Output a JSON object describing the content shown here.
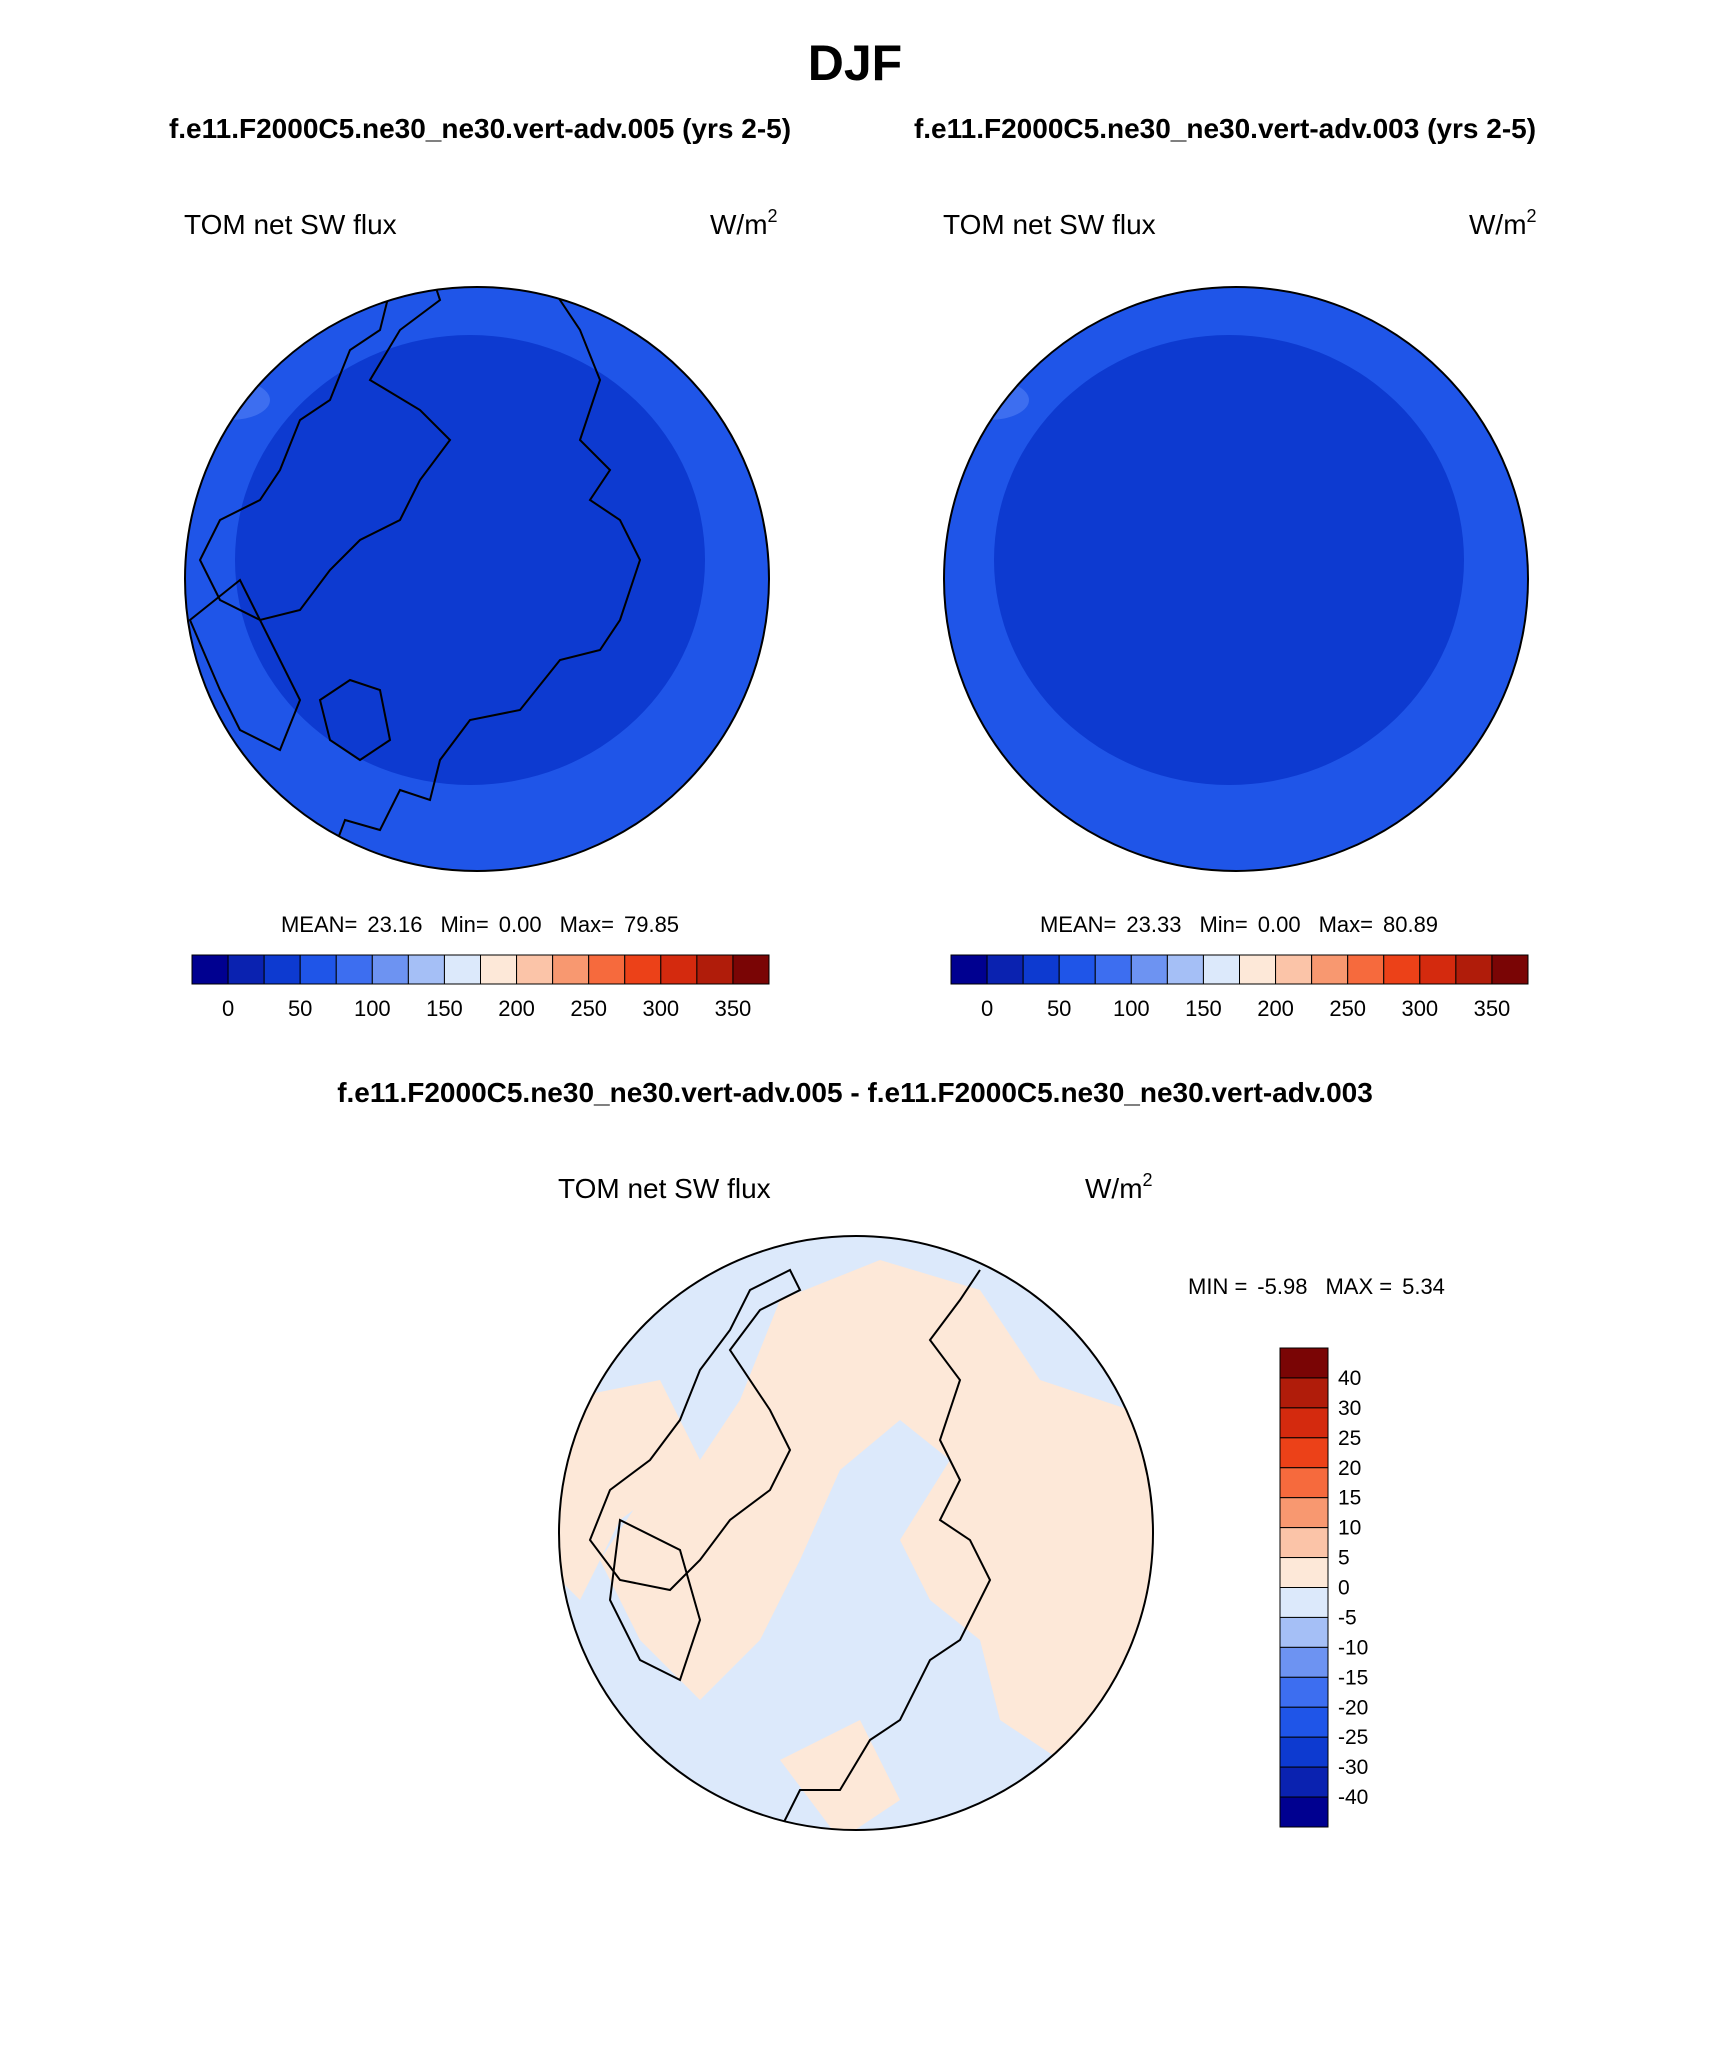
{
  "title": "DJF",
  "subtitle_left": "f.e11.F2000C5.ne30_ne30.vert-adv.005 (yrs 2-5)",
  "subtitle_right": "f.e11.F2000C5.ne30_ne30.vert-adv.003 (yrs 2-5)",
  "panels": [
    {
      "label": "TOM net SW flux",
      "units": "W/m",
      "units_sup": "2",
      "mean_label": "MEAN=",
      "mean": "23.16",
      "min_label": "Min=",
      "min": "0.00",
      "max_label": "Max=",
      "max": "79.85"
    },
    {
      "label": "TOM net SW flux",
      "units": "W/m",
      "units_sup": "2",
      "mean_label": "MEAN=",
      "mean": "23.33",
      "min_label": "Min=",
      "min": "0.00",
      "max_label": "Max=",
      "max": "80.89"
    }
  ],
  "colorbar": {
    "colors": [
      "#000090",
      "#0a22b0",
      "#0d3ad0",
      "#1f55e8",
      "#3d6ef0",
      "#6d93f2",
      "#a5bff6",
      "#dce9fb",
      "#fde8d8",
      "#fbc4a8",
      "#f89870",
      "#f66a3d",
      "#ec4118",
      "#d42a0e",
      "#b01c0a",
      "#7a0505"
    ],
    "labels": [
      "0",
      "50",
      "100",
      "150",
      "200",
      "250",
      "300",
      "350"
    ]
  },
  "difference": {
    "title": "f.e11.F2000C5.ne30_ne30.vert-adv.005 - f.e11.F2000C5.ne30_ne30.vert-adv.003",
    "label": "TOM net SW flux",
    "units": "W/m",
    "units_sup": "2",
    "min_label": "MIN =",
    "min": "-5.98",
    "max_label": "MAX =",
    "max": "5.34",
    "colorbar_labels": [
      "40",
      "30",
      "25",
      "20",
      "15",
      "10",
      "5",
      "0",
      "-5",
      "-10",
      "-15",
      "-20",
      "-25",
      "-30",
      "-40"
    ]
  }
}
